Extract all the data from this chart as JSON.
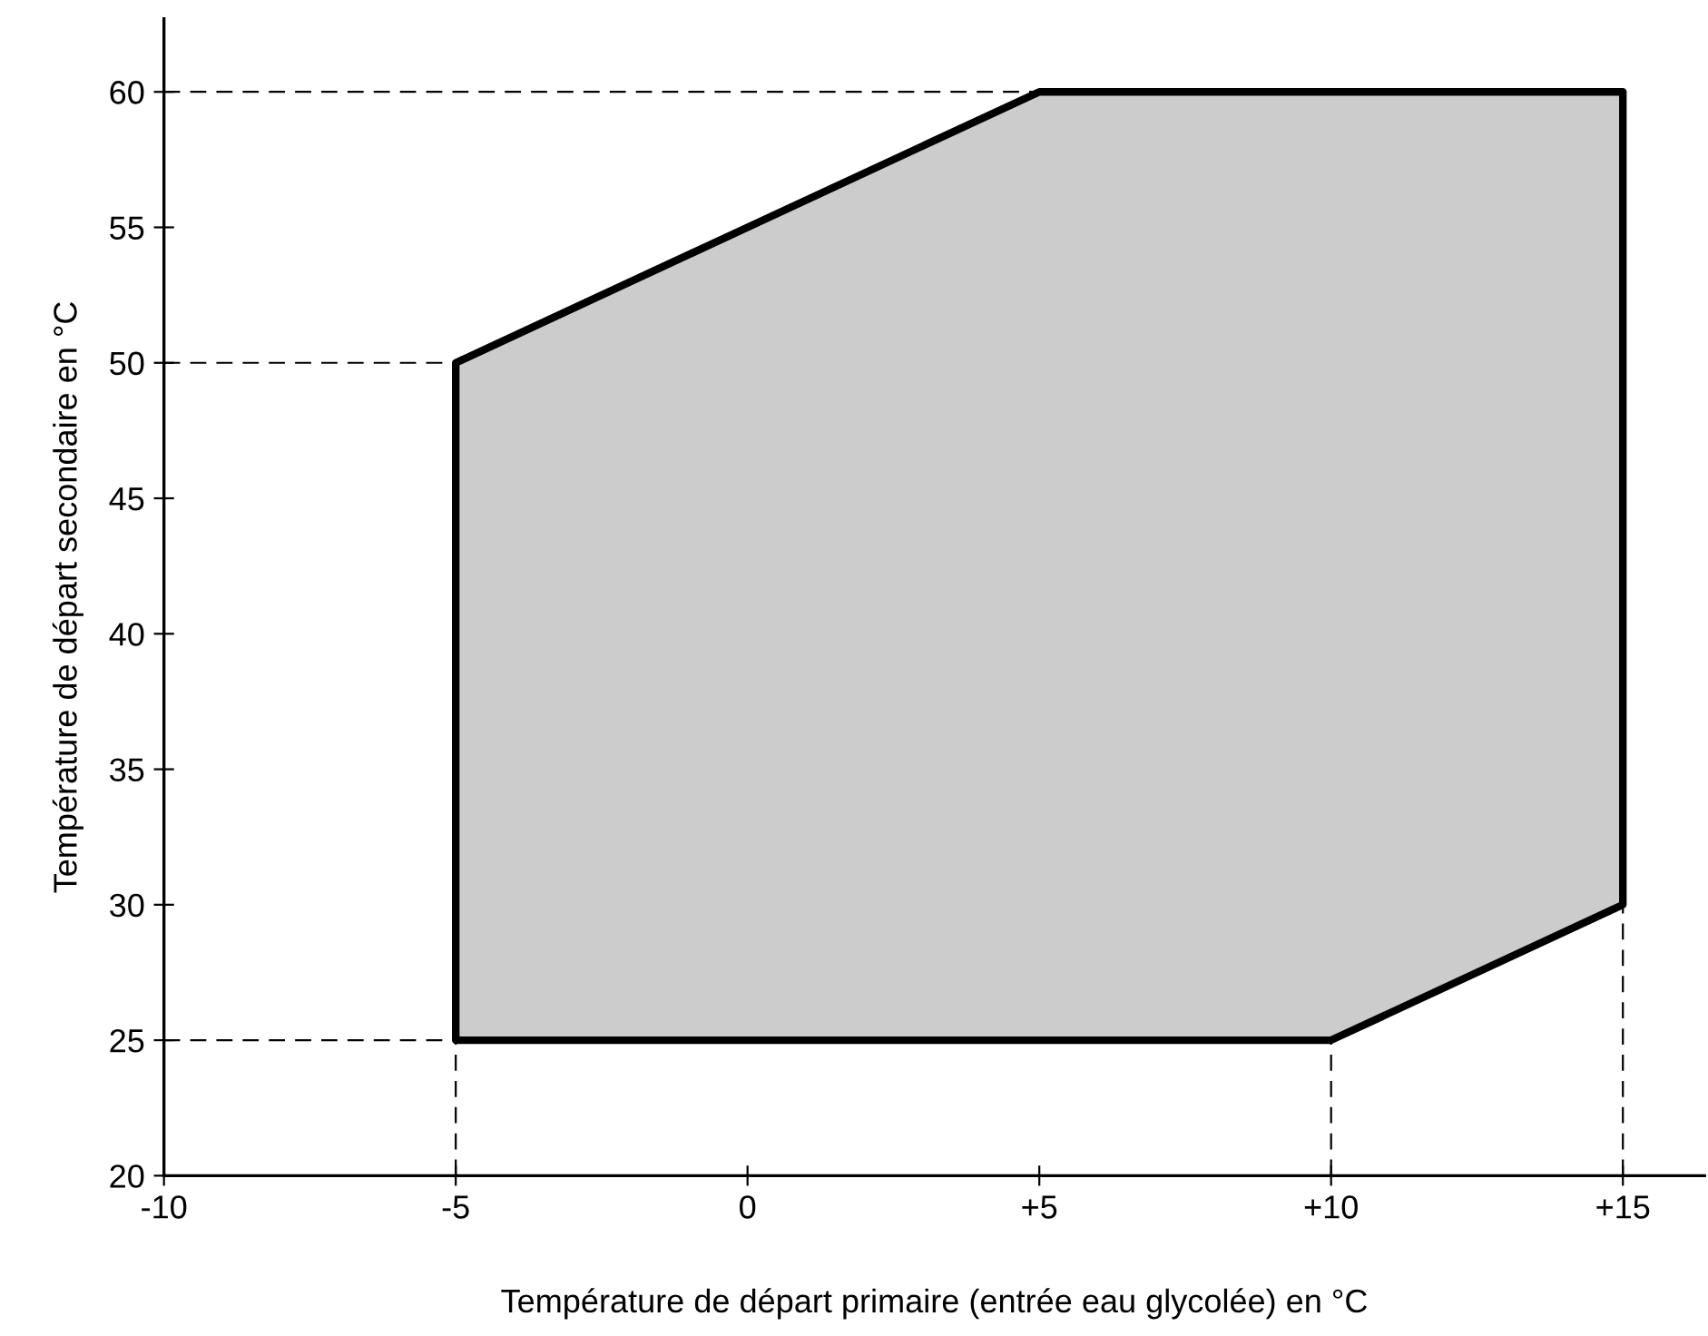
{
  "chart_data": {
    "type": "area",
    "xlabel": "Température de départ primaire (entrée eau glycolée) en °C",
    "ylabel": "Température de départ secondaire en °C",
    "series": [
      {
        "color": "#cccccc",
        "x": [
          -5,
          -5,
          5,
          15,
          15,
          10,
          -5
        ],
        "values": [
          25,
          50,
          60,
          60,
          30,
          25,
          25
        ]
      }
    ],
    "xlim": [
      -10,
      16.4
    ],
    "ylim": [
      20,
      62.7
    ],
    "xticks": [
      -10,
      -5,
      0,
      {
        "value": 5,
        "label": "+5"
      },
      {
        "value": 10,
        "label": "+10"
      },
      {
        "value": 15,
        "label": "+15"
      }
    ],
    "yticks": [
      20,
      25,
      30,
      35,
      40,
      45,
      50,
      55,
      60
    ],
    "ref_lines": [
      {
        "axis": "y",
        "value": 60,
        "line_style": "dashed"
      },
      {
        "axis": "y",
        "value": 50,
        "line_style": "dashed"
      },
      {
        "axis": "y",
        "value": 25,
        "line_style": "dashed"
      },
      {
        "axis": "x",
        "value": -5,
        "line_style": "dashed"
      },
      {
        "axis": "x",
        "value": 10,
        "line_style": "dashed"
      },
      {
        "axis": "x",
        "value": 15,
        "line_style": "dashed"
      }
    ],
    "grid": false
  }
}
